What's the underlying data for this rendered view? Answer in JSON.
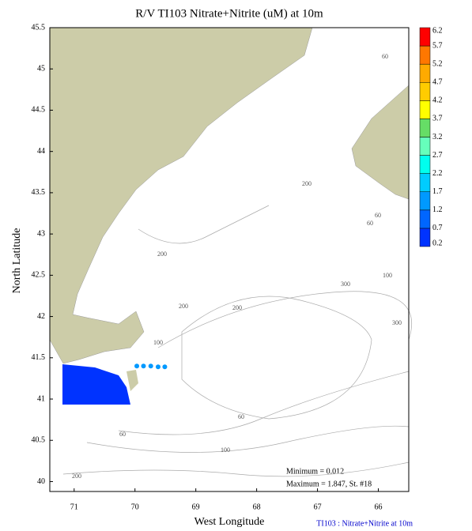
{
  "chart_data": {
    "type": "contour-map",
    "title": "R/V TI103 Nitrate+Nitrite (uM) at 10m",
    "x_label": "West Longitude",
    "y_label": "North Latitude",
    "xlim": [
      71.4,
      65.5
    ],
    "ylim": [
      39.88,
      45.5
    ],
    "xticks": [
      71,
      70,
      69,
      68,
      67,
      66
    ],
    "yticks": [
      40,
      40.5,
      41,
      41.5,
      42,
      42.5,
      43,
      43.5,
      44,
      44.5,
      45,
      45.5
    ],
    "land_color": "#cccca8",
    "levels": [
      0.2,
      0.7,
      1.2,
      1.7,
      2.2,
      2.7,
      3.2,
      3.7,
      4.2,
      4.7,
      5.2,
      5.7,
      6.2
    ],
    "level_colors": [
      "#0033ff",
      "#0066ff",
      "#0099ff",
      "#00ccff",
      "#00ffee",
      "#66ffbb",
      "#66dd66",
      "#ffff00",
      "#ffcc00",
      "#ffaa00",
      "#ff7700",
      "#ff0000"
    ],
    "stations": {
      "lon": [
        69.97,
        69.86,
        69.74,
        69.62,
        69.51
      ],
      "lat": [
        41.4,
        41.4,
        41.4,
        41.39,
        41.39
      ],
      "values": [
        1.3,
        1.4,
        1.5,
        1.4,
        1.3
      ]
    },
    "depth_labels": [
      "60",
      "200",
      "60",
      "60",
      "200",
      "100",
      "300",
      "200",
      "200",
      "300",
      "100",
      "60",
      "60",
      "100",
      "200"
    ],
    "minimum_text": "Minimum = 0.012",
    "maximum_text": "Maximum = 1.847, St. #18",
    "footer": "TI103 : Nitrate+Nitrite at 10m"
  }
}
